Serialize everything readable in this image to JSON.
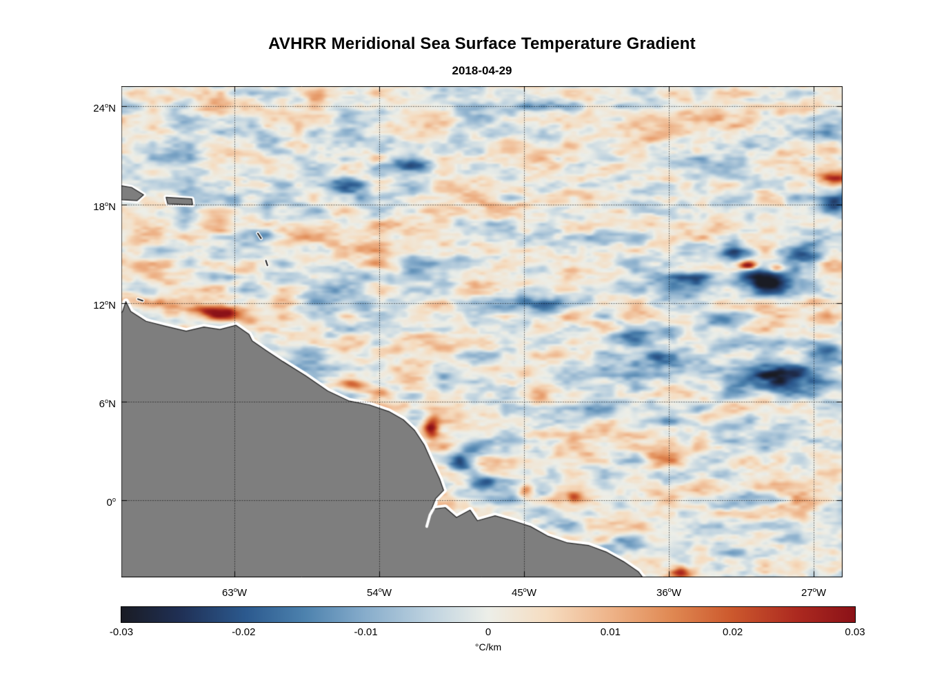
{
  "chart_data": {
    "type": "heatmap",
    "title": "AVHRR Meridional Sea Surface Temperature Gradient",
    "subtitle": "2018-04-29",
    "projection": {
      "lon_range": [
        -70.03,
        -25.2
      ],
      "lat_range": [
        -4.7,
        25.22
      ]
    },
    "x_axis": {
      "ticks": [
        {
          "lon": -63,
          "label": "63°W"
        },
        {
          "lon": -54,
          "label": "54°W"
        },
        {
          "lon": -45,
          "label": "45°W"
        },
        {
          "lon": -36,
          "label": "36°W"
        },
        {
          "lon": -27,
          "label": "27°W"
        }
      ]
    },
    "y_axis": {
      "ticks": [
        {
          "lat": 24,
          "label": "24°N"
        },
        {
          "lat": 18,
          "label": "18°N"
        },
        {
          "lat": 12,
          "label": "12°N"
        },
        {
          "lat": 6,
          "label": "6°N"
        },
        {
          "lat": 0,
          "label": "0°"
        }
      ]
    },
    "colorbar": {
      "min": -0.03,
      "max": 0.03,
      "tick_labels": [
        "-0.03",
        "-0.02",
        "-0.01",
        "0",
        "0.01",
        "0.02",
        "0.03"
      ],
      "unit_label": "°C/km",
      "colormap_stops": [
        [
          0.0,
          "#1a1c24"
        ],
        [
          0.08,
          "#203055"
        ],
        [
          0.17,
          "#2c5a8f"
        ],
        [
          0.25,
          "#4d82ae"
        ],
        [
          0.33,
          "#86accb"
        ],
        [
          0.42,
          "#bfd3e0"
        ],
        [
          0.5,
          "#edefe9"
        ],
        [
          0.58,
          "#f6ddc1"
        ],
        [
          0.67,
          "#eeb287"
        ],
        [
          0.75,
          "#e08953"
        ],
        [
          0.83,
          "#cd5a2e"
        ],
        [
          0.92,
          "#ad2a20"
        ],
        [
          1.0,
          "#8b1218"
        ]
      ]
    },
    "land": {
      "fill": "#7e7e7e",
      "outline": "#1f1f1f",
      "coast_halo": "#ffffff",
      "coastline": [
        [
          -70.6,
          10.85
        ],
        [
          -69.95,
          11.5
        ],
        [
          -69.75,
          12.1
        ],
        [
          -69.45,
          11.5
        ],
        [
          -68.5,
          10.9
        ],
        [
          -67.3,
          10.6
        ],
        [
          -66.0,
          10.3
        ],
        [
          -64.9,
          10.55
        ],
        [
          -63.9,
          10.4
        ],
        [
          -62.9,
          10.65
        ],
        [
          -62.1,
          10.1
        ],
        [
          -61.9,
          9.7
        ],
        [
          -61.0,
          9.1
        ],
        [
          -60.0,
          8.45
        ],
        [
          -58.6,
          7.6
        ],
        [
          -57.2,
          6.65
        ],
        [
          -55.9,
          6.05
        ],
        [
          -54.6,
          5.8
        ],
        [
          -53.4,
          5.4
        ],
        [
          -52.5,
          4.9
        ],
        [
          -51.8,
          4.25
        ],
        [
          -51.2,
          3.35
        ],
        [
          -50.7,
          2.25
        ],
        [
          -50.25,
          1.3
        ],
        [
          -50.0,
          0.6
        ],
        [
          -50.5,
          0.1
        ],
        [
          -50.75,
          -0.55
        ],
        [
          -49.9,
          -0.45
        ],
        [
          -49.2,
          -1.05
        ],
        [
          -48.35,
          -0.6
        ],
        [
          -47.9,
          -1.25
        ],
        [
          -46.8,
          -0.95
        ],
        [
          -45.7,
          -1.25
        ],
        [
          -44.6,
          -1.6
        ],
        [
          -43.5,
          -2.2
        ],
        [
          -42.3,
          -2.6
        ],
        [
          -41.0,
          -2.75
        ],
        [
          -39.9,
          -3.15
        ],
        [
          -38.8,
          -3.75
        ],
        [
          -37.9,
          -4.35
        ],
        [
          -37.0,
          -5.5
        ],
        [
          -36.6,
          -6.5
        ],
        [
          -71.0,
          -6.5
        ]
      ],
      "islands": [
        [
          [
            -70.6,
            19.25
          ],
          [
            -69.4,
            19.05
          ],
          [
            -68.65,
            18.6
          ],
          [
            -69.05,
            18.25
          ],
          [
            -70.0,
            18.3
          ],
          [
            -70.6,
            18.5
          ]
        ],
        [
          [
            -67.25,
            18.45
          ],
          [
            -65.65,
            18.35
          ],
          [
            -65.6,
            18.0
          ],
          [
            -67.15,
            18.05
          ]
        ]
      ],
      "islets": [
        [
          [
            -61.55,
            16.25
          ],
          [
            -61.35,
            15.95
          ]
        ],
        [
          [
            -61.05,
            14.6
          ],
          [
            -60.95,
            14.3
          ]
        ],
        [
          [
            -69.0,
            12.25
          ],
          [
            -68.7,
            12.15
          ]
        ]
      ],
      "rivers": [
        [
          [
            -50.45,
            -0.2
          ],
          [
            -50.85,
            -0.9
          ],
          [
            -51.05,
            -1.6
          ]
        ]
      ]
    },
    "ocean_field": {
      "seed": 11,
      "noise_octaves": [
        [
          0.22,
          0.55,
          0.004
        ],
        [
          0.5,
          1.25,
          0.0075
        ],
        [
          1.0,
          2.5,
          0.005
        ],
        [
          2.1,
          5.0,
          0.003
        ]
      ],
      "features": [
        {
          "lon": -63.9,
          "lat": 11.35,
          "amp": 0.034,
          "rx": 1.2,
          "ry": 0.45
        },
        {
          "lon": -65.8,
          "lat": 11.8,
          "amp": 0.015,
          "rx": 2.0,
          "ry": 0.7
        },
        {
          "lon": -62.2,
          "lat": 11.05,
          "amp": 0.013,
          "rx": 1.0,
          "ry": 0.4
        },
        {
          "lon": -67.8,
          "lat": 13.9,
          "amp": 0.012,
          "rx": 2.4,
          "ry": 0.9
        },
        {
          "lon": -69.5,
          "lat": 12.3,
          "amp": 0.013,
          "rx": 0.9,
          "ry": 0.5
        },
        {
          "lon": -55.6,
          "lat": 6.95,
          "amp": 0.02,
          "rx": 0.9,
          "ry": 0.35
        },
        {
          "lon": -53.9,
          "lat": 6.5,
          "amp": 0.018,
          "rx": 1.0,
          "ry": 0.35
        },
        {
          "lon": -52.3,
          "lat": 5.7,
          "amp": 0.013,
          "rx": 0.8,
          "ry": 0.3
        },
        {
          "lon": -50.75,
          "lat": 4.4,
          "amp": 0.024,
          "rx": 0.45,
          "ry": 0.8
        },
        {
          "lon": -44.9,
          "lat": 0.55,
          "amp": 0.022,
          "rx": 0.5,
          "ry": 0.35
        },
        {
          "lon": -41.9,
          "lat": 0.2,
          "amp": 0.015,
          "rx": 0.45,
          "ry": 0.3
        },
        {
          "lon": -35.3,
          "lat": -4.4,
          "amp": 0.02,
          "rx": 0.7,
          "ry": 0.35
        },
        {
          "lon": -31.1,
          "lat": 14.3,
          "amp": 0.03,
          "rx": 0.55,
          "ry": 0.25
        },
        {
          "lon": -29.3,
          "lat": 14.15,
          "amp": 0.022,
          "rx": 0.5,
          "ry": 0.25
        },
        {
          "lon": -25.7,
          "lat": 19.6,
          "amp": 0.027,
          "rx": 0.9,
          "ry": 0.3
        },
        {
          "lon": -58.4,
          "lat": 16.1,
          "amp": 0.01,
          "rx": 1.5,
          "ry": 0.6
        },
        {
          "lon": -36.2,
          "lat": 2.6,
          "amp": 0.011,
          "rx": 1.3,
          "ry": 0.6
        },
        {
          "lon": -33.6,
          "lat": 5.0,
          "amp": 0.012,
          "rx": 0.9,
          "ry": 0.4
        },
        {
          "lon": -52.3,
          "lat": 20.4,
          "amp": -0.016,
          "rx": 1.6,
          "ry": 0.45
        },
        {
          "lon": -55.9,
          "lat": 19.2,
          "amp": -0.012,
          "rx": 1.2,
          "ry": 0.4
        },
        {
          "lon": -60.6,
          "lat": 21.6,
          "amp": -0.012,
          "rx": 1.1,
          "ry": 0.5
        },
        {
          "lon": -64.0,
          "lat": 22.6,
          "amp": -0.01,
          "rx": 1.2,
          "ry": 0.5
        },
        {
          "lon": -47.2,
          "lat": 12.05,
          "amp": -0.014,
          "rx": 2.0,
          "ry": 0.45
        },
        {
          "lon": -43.6,
          "lat": 11.85,
          "amp": -0.012,
          "rx": 1.5,
          "ry": 0.5
        },
        {
          "lon": -38.3,
          "lat": 9.9,
          "amp": -0.017,
          "rx": 1.8,
          "ry": 0.6
        },
        {
          "lon": -36.4,
          "lat": 8.6,
          "amp": -0.013,
          "rx": 1.5,
          "ry": 0.5
        },
        {
          "lon": -29.8,
          "lat": 13.4,
          "amp": -0.026,
          "rx": 2.0,
          "ry": 0.9
        },
        {
          "lon": -27.5,
          "lat": 15.1,
          "amp": -0.022,
          "rx": 1.6,
          "ry": 0.7
        },
        {
          "lon": -31.9,
          "lat": 14.9,
          "amp": -0.017,
          "rx": 1.2,
          "ry": 0.5
        },
        {
          "lon": -29.0,
          "lat": 7.4,
          "amp": -0.024,
          "rx": 2.4,
          "ry": 1.0
        },
        {
          "lon": -26.2,
          "lat": 9.0,
          "amp": -0.018,
          "rx": 1.4,
          "ry": 0.7
        },
        {
          "lon": -25.8,
          "lat": 18.1,
          "amp": -0.02,
          "rx": 0.9,
          "ry": 0.6
        },
        {
          "lon": -48.7,
          "lat": 2.3,
          "amp": -0.02,
          "rx": 0.9,
          "ry": 0.7
        },
        {
          "lon": -47.5,
          "lat": 1.15,
          "amp": -0.015,
          "rx": 0.8,
          "ry": 0.5
        },
        {
          "lon": -42.6,
          "lat": -1.5,
          "amp": -0.015,
          "rx": 1.2,
          "ry": 0.4
        },
        {
          "lon": -38.9,
          "lat": -2.6,
          "amp": -0.012,
          "rx": 1.0,
          "ry": 0.45
        },
        {
          "lon": -33.0,
          "lat": 11.0,
          "amp": -0.013,
          "rx": 1.5,
          "ry": 0.6
        },
        {
          "lon": -61.1,
          "lat": 16.2,
          "amp": -0.011,
          "rx": 0.9,
          "ry": 0.35
        },
        {
          "lon": -57.6,
          "lat": 12.6,
          "amp": -0.009,
          "rx": 1.2,
          "ry": 0.5
        },
        {
          "lon": -34.9,
          "lat": 13.3,
          "amp": -0.014,
          "rx": 1.4,
          "ry": 0.6
        }
      ]
    }
  }
}
